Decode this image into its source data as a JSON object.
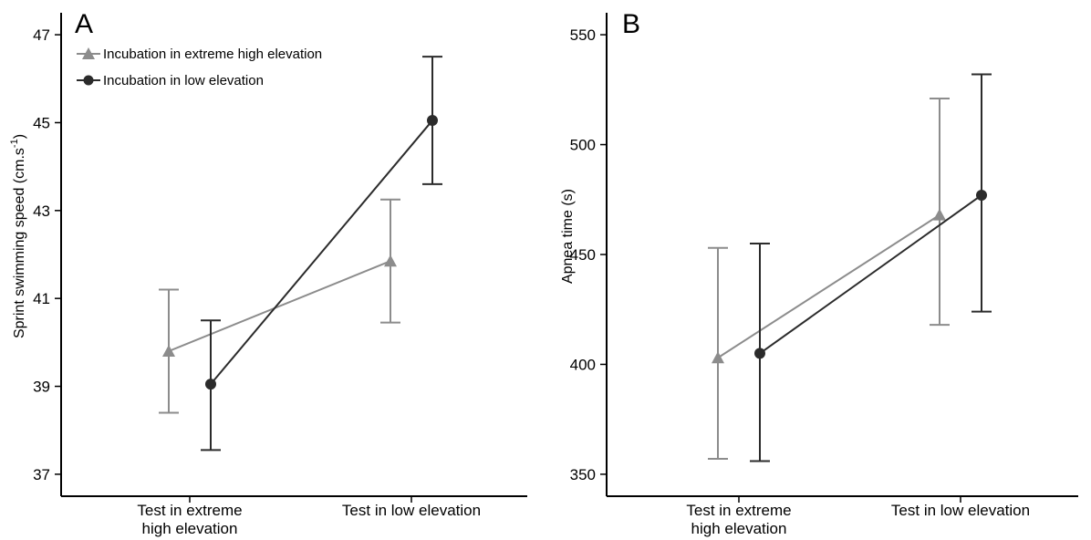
{
  "chart_data": [
    {
      "type": "line",
      "panel_label": "A",
      "ylabel_main": "Sprint swimming speed (cm.s",
      "ylabel_sup": "-1",
      "ylabel_close": ")",
      "ylim": [
        36.5,
        47.5
      ],
      "yticks": [
        37,
        39,
        41,
        43,
        45,
        47
      ],
      "categories": [
        [
          "Test in extreme",
          "high elevation"
        ],
        [
          "Test in low elevation"
        ]
      ],
      "legend": "top-left",
      "series": [
        {
          "name": "Incubation in extreme high elevation",
          "marker": "triangle",
          "color": "#8c8c8c",
          "values": [
            39.8,
            41.85
          ],
          "err_low": [
            38.4,
            40.45
          ],
          "err_high": [
            41.2,
            43.25
          ]
        },
        {
          "name": "Incubation in low elevation",
          "marker": "circle",
          "color": "#2b2b2b",
          "values": [
            39.05,
            45.05
          ],
          "err_low": [
            37.55,
            43.6
          ],
          "err_high": [
            40.5,
            46.5
          ]
        }
      ]
    },
    {
      "type": "line",
      "panel_label": "B",
      "ylabel_main": "Apnea time (s)",
      "ylabel_sup": "",
      "ylabel_close": "",
      "ylim": [
        340,
        560
      ],
      "yticks": [
        350,
        400,
        450,
        500,
        550
      ],
      "categories": [
        [
          "Test in extreme",
          "high elevation"
        ],
        [
          "Test in low elevation"
        ]
      ],
      "series": [
        {
          "name": "Incubation in extreme high elevation",
          "marker": "triangle",
          "color": "#8c8c8c",
          "values": [
            403,
            468
          ],
          "err_low": [
            357,
            418
          ],
          "err_high": [
            453,
            521
          ]
        },
        {
          "name": "Incubation in low elevation",
          "marker": "circle",
          "color": "#2b2b2b",
          "values": [
            405,
            477
          ],
          "err_low": [
            356,
            424
          ],
          "err_high": [
            455,
            532
          ]
        }
      ]
    }
  ]
}
